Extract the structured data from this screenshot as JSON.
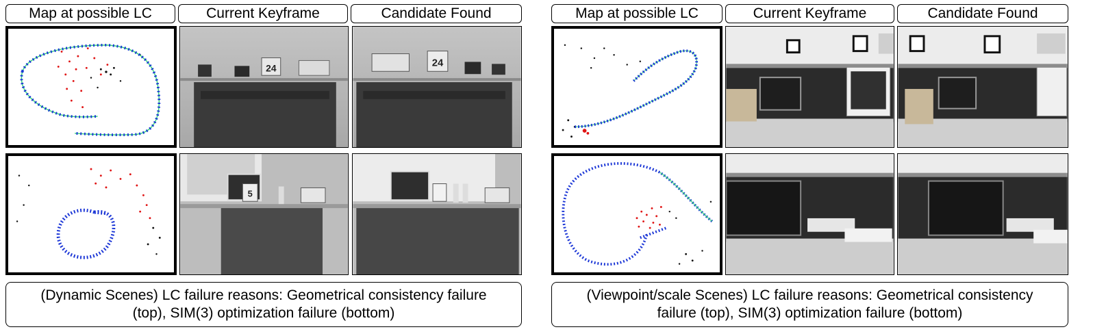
{
  "left_panel": {
    "headers": [
      "Map at possible LC",
      "Current Keyframe",
      "Candidate Found"
    ],
    "caption": "(Dynamic Scenes) LC failure reasons: Geometrical consistency failure (top), SIM(3) optimization failure (bottom)",
    "calendar_top_current": "24",
    "calendar_top_candidate": "24",
    "calendar_bottom_current": "5"
  },
  "right_panel": {
    "headers": [
      "Map at possible LC",
      "Current Keyframe",
      "Candidate Found"
    ],
    "caption": "(Viewpoint/scale Scenes) LC failure reasons: Geometrical consistency failure (top), SIM(3) optimization failure (bottom)"
  },
  "colors": {
    "trajectory": "#1a35d6",
    "trajectory_line": "#33d17a",
    "map_points_red": "#e01515",
    "map_points_black": "#111111"
  }
}
